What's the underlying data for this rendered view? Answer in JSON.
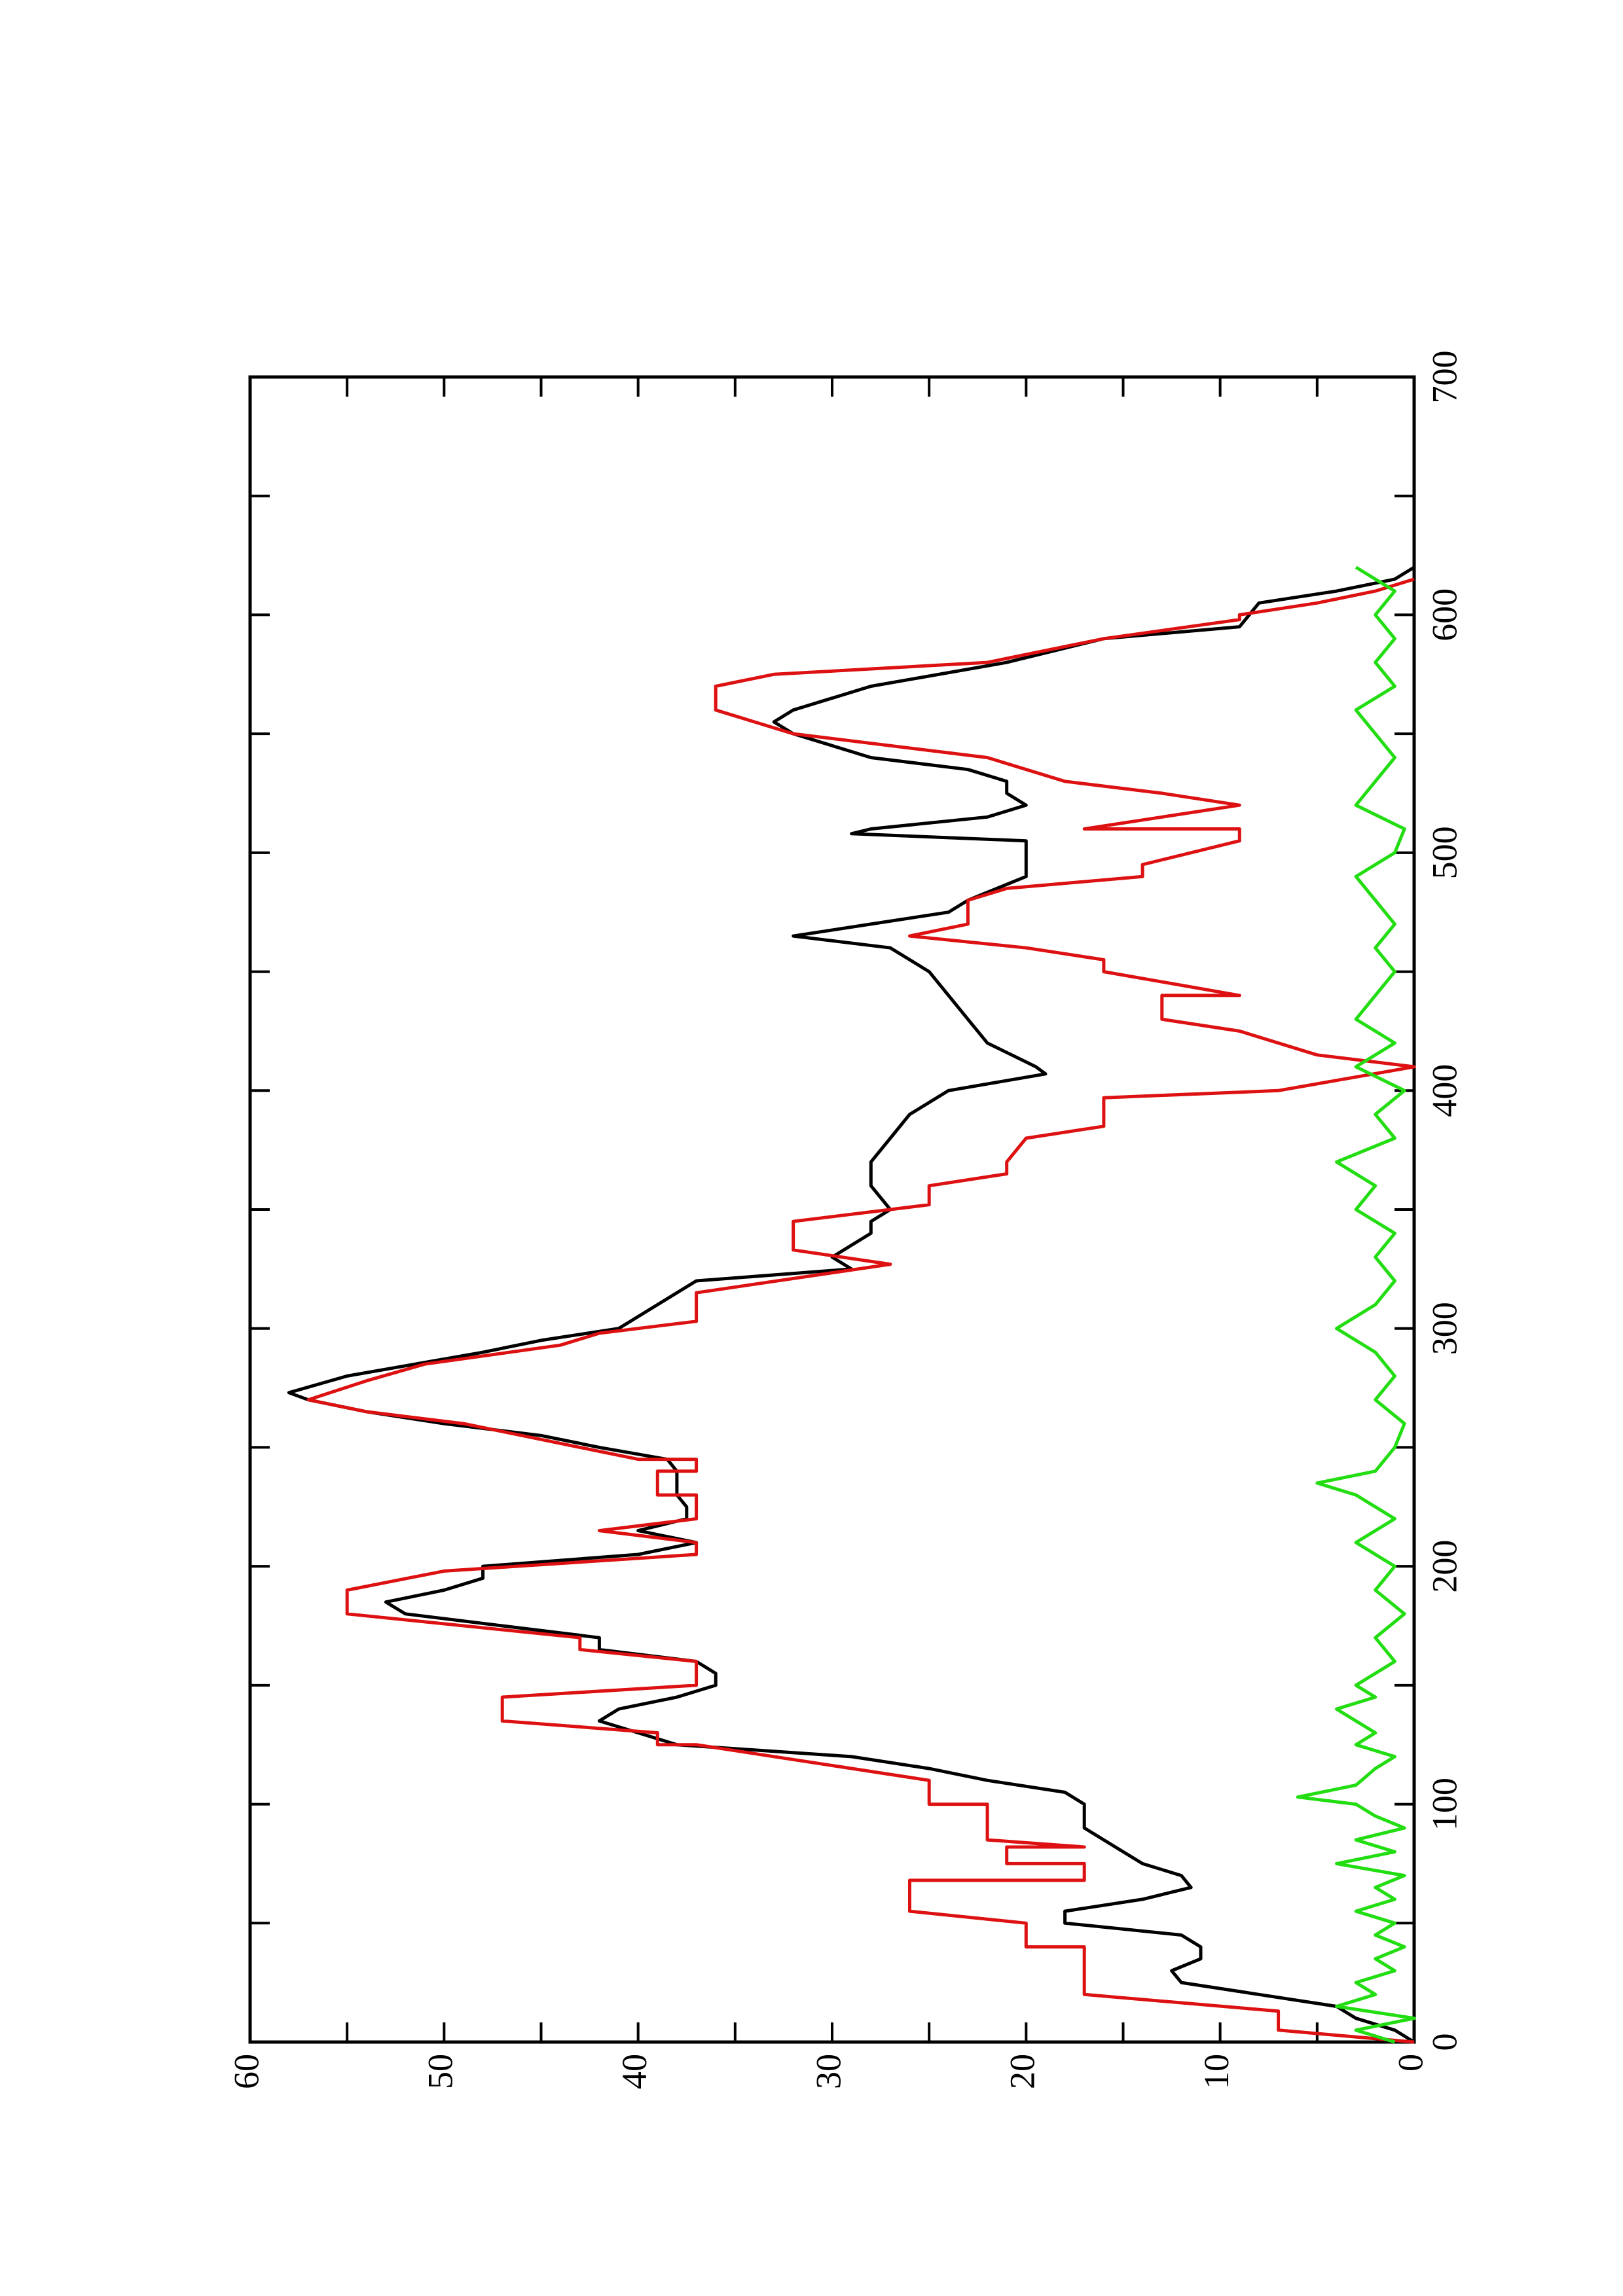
{
  "chart_data": {
    "type": "line",
    "orientation": "rotated",
    "xlim": [
      0,
      700
    ],
    "xticks": [
      0,
      100,
      200,
      300,
      400,
      500,
      600,
      700
    ],
    "xminor_ticks": [
      50,
      150,
      250,
      350,
      450,
      550,
      650
    ],
    "ylim": [
      0,
      60
    ],
    "yticks": [
      0,
      10,
      20,
      30,
      40,
      50,
      60
    ],
    "yminor_ticks": [
      5,
      15,
      25,
      35,
      45,
      55
    ],
    "series": [
      {
        "color": "#000000",
        "x": [
          0,
          5,
          10,
          15,
          20,
          25,
          30,
          35,
          40,
          45,
          50,
          55,
          60,
          65,
          70,
          75,
          80,
          85,
          90,
          100,
          105,
          110,
          115,
          120,
          125,
          130,
          135,
          140,
          145,
          150,
          155,
          160,
          165,
          170,
          175,
          180,
          185,
          190,
          195,
          200,
          205,
          210,
          215,
          220,
          225,
          230,
          235,
          240,
          245,
          250,
          255,
          260,
          265,
          270,
          273,
          280,
          290,
          295,
          300,
          310,
          320,
          325,
          330,
          335,
          340,
          345,
          350,
          360,
          370,
          380,
          390,
          400,
          407,
          410,
          420,
          430,
          440,
          450,
          460,
          465,
          470,
          475,
          480,
          490,
          495,
          505,
          508,
          510,
          515,
          520,
          525,
          530,
          535,
          540,
          550,
          555,
          560,
          570,
          580,
          590,
          595,
          605,
          610,
          615,
          620
        ],
        "values": [
          0,
          1,
          3,
          4,
          8,
          12,
          12.5,
          11,
          11,
          12,
          18,
          18,
          14,
          11.5,
          12,
          14,
          15,
          16,
          17,
          17,
          18,
          22,
          25,
          29,
          38,
          40,
          42,
          41,
          38,
          36,
          36,
          37,
          42,
          42,
          47,
          52,
          53,
          50,
          48,
          48,
          40,
          37,
          40,
          37.5,
          37.5,
          38,
          38,
          38,
          38.5,
          42,
          45,
          50,
          54,
          57,
          58,
          55,
          48,
          45,
          41,
          39,
          37,
          29,
          30,
          29,
          28,
          28,
          27,
          28,
          28,
          27,
          26,
          24,
          19,
          19.5,
          22,
          23,
          24,
          25,
          27,
          32,
          28,
          24,
          23,
          20,
          20,
          20,
          29,
          28,
          22,
          20,
          21,
          21,
          23,
          28,
          32,
          33,
          32,
          28,
          21,
          16,
          9,
          8,
          4,
          1,
          0
        ]
      },
      {
        "color": "#dd1111",
        "x": [
          0,
          5,
          13,
          20,
          40,
          40,
          50,
          55,
          68,
          68,
          75,
          75,
          82,
          82,
          85,
          100,
          100,
          110,
          125,
          125,
          130,
          135,
          145,
          150,
          160,
          165,
          170,
          180,
          190,
          198,
          205,
          210,
          215,
          220,
          230,
          230,
          240,
          240,
          245,
          245,
          250,
          260,
          265,
          270,
          278,
          285,
          293,
          298,
          303,
          315,
          327,
          333,
          345,
          352,
          360,
          365,
          370,
          380,
          385,
          397,
          400,
          410,
          415,
          425,
          430,
          440,
          440,
          450,
          455,
          460,
          465,
          470,
          480,
          485,
          490,
          495,
          505,
          510,
          510,
          515,
          520,
          525,
          530,
          540,
          550,
          555,
          560,
          570,
          575,
          580,
          590,
          598,
          600,
          605,
          610,
          615
        ],
        "values": [
          0,
          7,
          7,
          17,
          17,
          20,
          20,
          26,
          26,
          17,
          17,
          21,
          21,
          17,
          22,
          22,
          25,
          25,
          37,
          39,
          39,
          47,
          47,
          37,
          37,
          43,
          43,
          55,
          55,
          50,
          37,
          37,
          42,
          37,
          37,
          39,
          39,
          37,
          37,
          40,
          43,
          49,
          54,
          57,
          54,
          51,
          44,
          42,
          37,
          37,
          27,
          32,
          32,
          25,
          25,
          21,
          21,
          20,
          16,
          16,
          7,
          0,
          5,
          9,
          13,
          13,
          9,
          16,
          16,
          20,
          26,
          23,
          23,
          21,
          14,
          14,
          9,
          9,
          17,
          13,
          9,
          13,
          18,
          22,
          32,
          34,
          36,
          36,
          33,
          22,
          16,
          9,
          9,
          5,
          2,
          0
        ]
      },
      {
        "color": "#22dd11",
        "x": [
          0,
          5,
          10,
          15,
          20,
          25,
          30,
          35,
          40,
          45,
          50,
          55,
          60,
          65,
          70,
          75,
          80,
          85,
          90,
          95,
          100,
          103,
          108,
          115,
          120,
          125,
          130,
          140,
          145,
          150,
          160,
          170,
          180,
          190,
          200,
          210,
          220,
          230,
          235,
          240,
          250,
          260,
          270,
          280,
          290,
          300,
          310,
          320,
          330,
          340,
          350,
          360,
          370,
          380,
          390,
          400,
          410,
          420,
          430,
          440,
          450,
          460,
          470,
          480,
          490,
          500,
          510,
          520,
          530,
          540,
          550,
          560,
          570,
          580,
          590,
          600,
          610,
          615,
          620
        ],
        "values": [
          1,
          3,
          0,
          4,
          2,
          3,
          1,
          2,
          0.5,
          2,
          1,
          3,
          1,
          2,
          0.5,
          4,
          1,
          3,
          0.5,
          2,
          3,
          6,
          3,
          2,
          1,
          3,
          2,
          4,
          2,
          3,
          1,
          2,
          0.5,
          2,
          1,
          3,
          1,
          3,
          5,
          2,
          1,
          0.5,
          2,
          1,
          2,
          4,
          2,
          1,
          2,
          1,
          3,
          2,
          4,
          1,
          2,
          0.5,
          3,
          1,
          3,
          2,
          1,
          2,
          1,
          2,
          3,
          1,
          0.5,
          3,
          2,
          1,
          2,
          3,
          1,
          2,
          1,
          2,
          1,
          2,
          3
        ]
      }
    ]
  }
}
